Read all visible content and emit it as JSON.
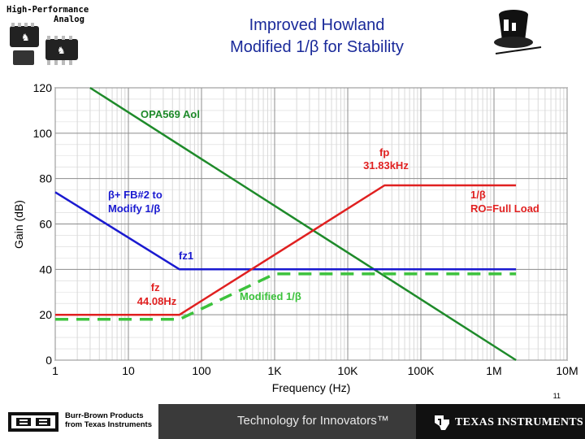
{
  "header": {
    "logo_text_line1": "High-Performance",
    "logo_text_line2": "Analog",
    "title_line1": "Improved Howland",
    "title_line2": "Modified 1/β for Stability"
  },
  "chart_data": {
    "type": "line",
    "title": "",
    "xlabel": "Frequency (Hz)",
    "ylabel": "Gain (dB)",
    "xscale": "log",
    "xlim": [
      1,
      10000000
    ],
    "ylim": [
      0,
      120
    ],
    "grid": true,
    "x_tick_labels": [
      "1",
      "10",
      "100",
      "1K",
      "10K",
      "100K",
      "1M",
      "10M"
    ],
    "x_tick_values": [
      1,
      10,
      100,
      1000,
      10000,
      100000,
      1000000,
      10000000
    ],
    "y_tick_values": [
      0,
      20,
      40,
      60,
      80,
      100,
      120
    ],
    "y_tick_labels": [
      "0",
      "20",
      "40",
      "60",
      "80",
      "100",
      "120"
    ],
    "series": [
      {
        "color": "#1e8a2a",
        "style": "solid",
        "x": [
          3,
          2000000
        ],
        "y": [
          120,
          0
        ]
      },
      {
        "color": "#1a1ad0",
        "style": "solid",
        "x": [
          1,
          50,
          2000000
        ],
        "y": [
          74,
          40,
          40
        ]
      },
      {
        "color": "#e02020",
        "style": "solid",
        "x": [
          1,
          50,
          31830,
          2000000
        ],
        "y": [
          20,
          20,
          77,
          77
        ]
      },
      {
        "color": "#3cc23c",
        "style": "dashed",
        "x": [
          1,
          50,
          1000,
          2000000
        ],
        "y": [
          18,
          18,
          38,
          38
        ]
      }
    ],
    "annotations": [
      {
        "text": "OPA569 Aol",
        "color": "#1e8a2a",
        "lines": [
          "OPA569 Aol"
        ]
      },
      {
        "text": "fp 31.83kHz",
        "color": "#e02020",
        "lines": [
          "fp",
          "31.83kHz"
        ]
      },
      {
        "text": "β+ FB#2 to Modify 1/β",
        "color": "#1a1ad0",
        "lines": [
          "β+ FB#2 to",
          "Modify 1/β"
        ]
      },
      {
        "text": "1/β RO=Full Load",
        "color": "#e02020",
        "lines": [
          "1/β",
          "RO=Full Load"
        ]
      },
      {
        "text": "fz1",
        "color": "#1a1ad0",
        "lines": [
          "fz1"
        ]
      },
      {
        "text": "fz 44.08Hz",
        "color": "#e02020",
        "lines": [
          "fz",
          "44.08Hz"
        ]
      },
      {
        "text": "Modified 1/β",
        "color": "#3cc23c",
        "lines": [
          "Modified 1/β"
        ]
      }
    ]
  },
  "footer": {
    "slide_number": "11",
    "bb_line1": "Burr-Brown Products",
    "bb_line2": "from Texas Instruments",
    "tagline": "Technology for Innovators™",
    "ti_name": "Texas Instruments"
  }
}
